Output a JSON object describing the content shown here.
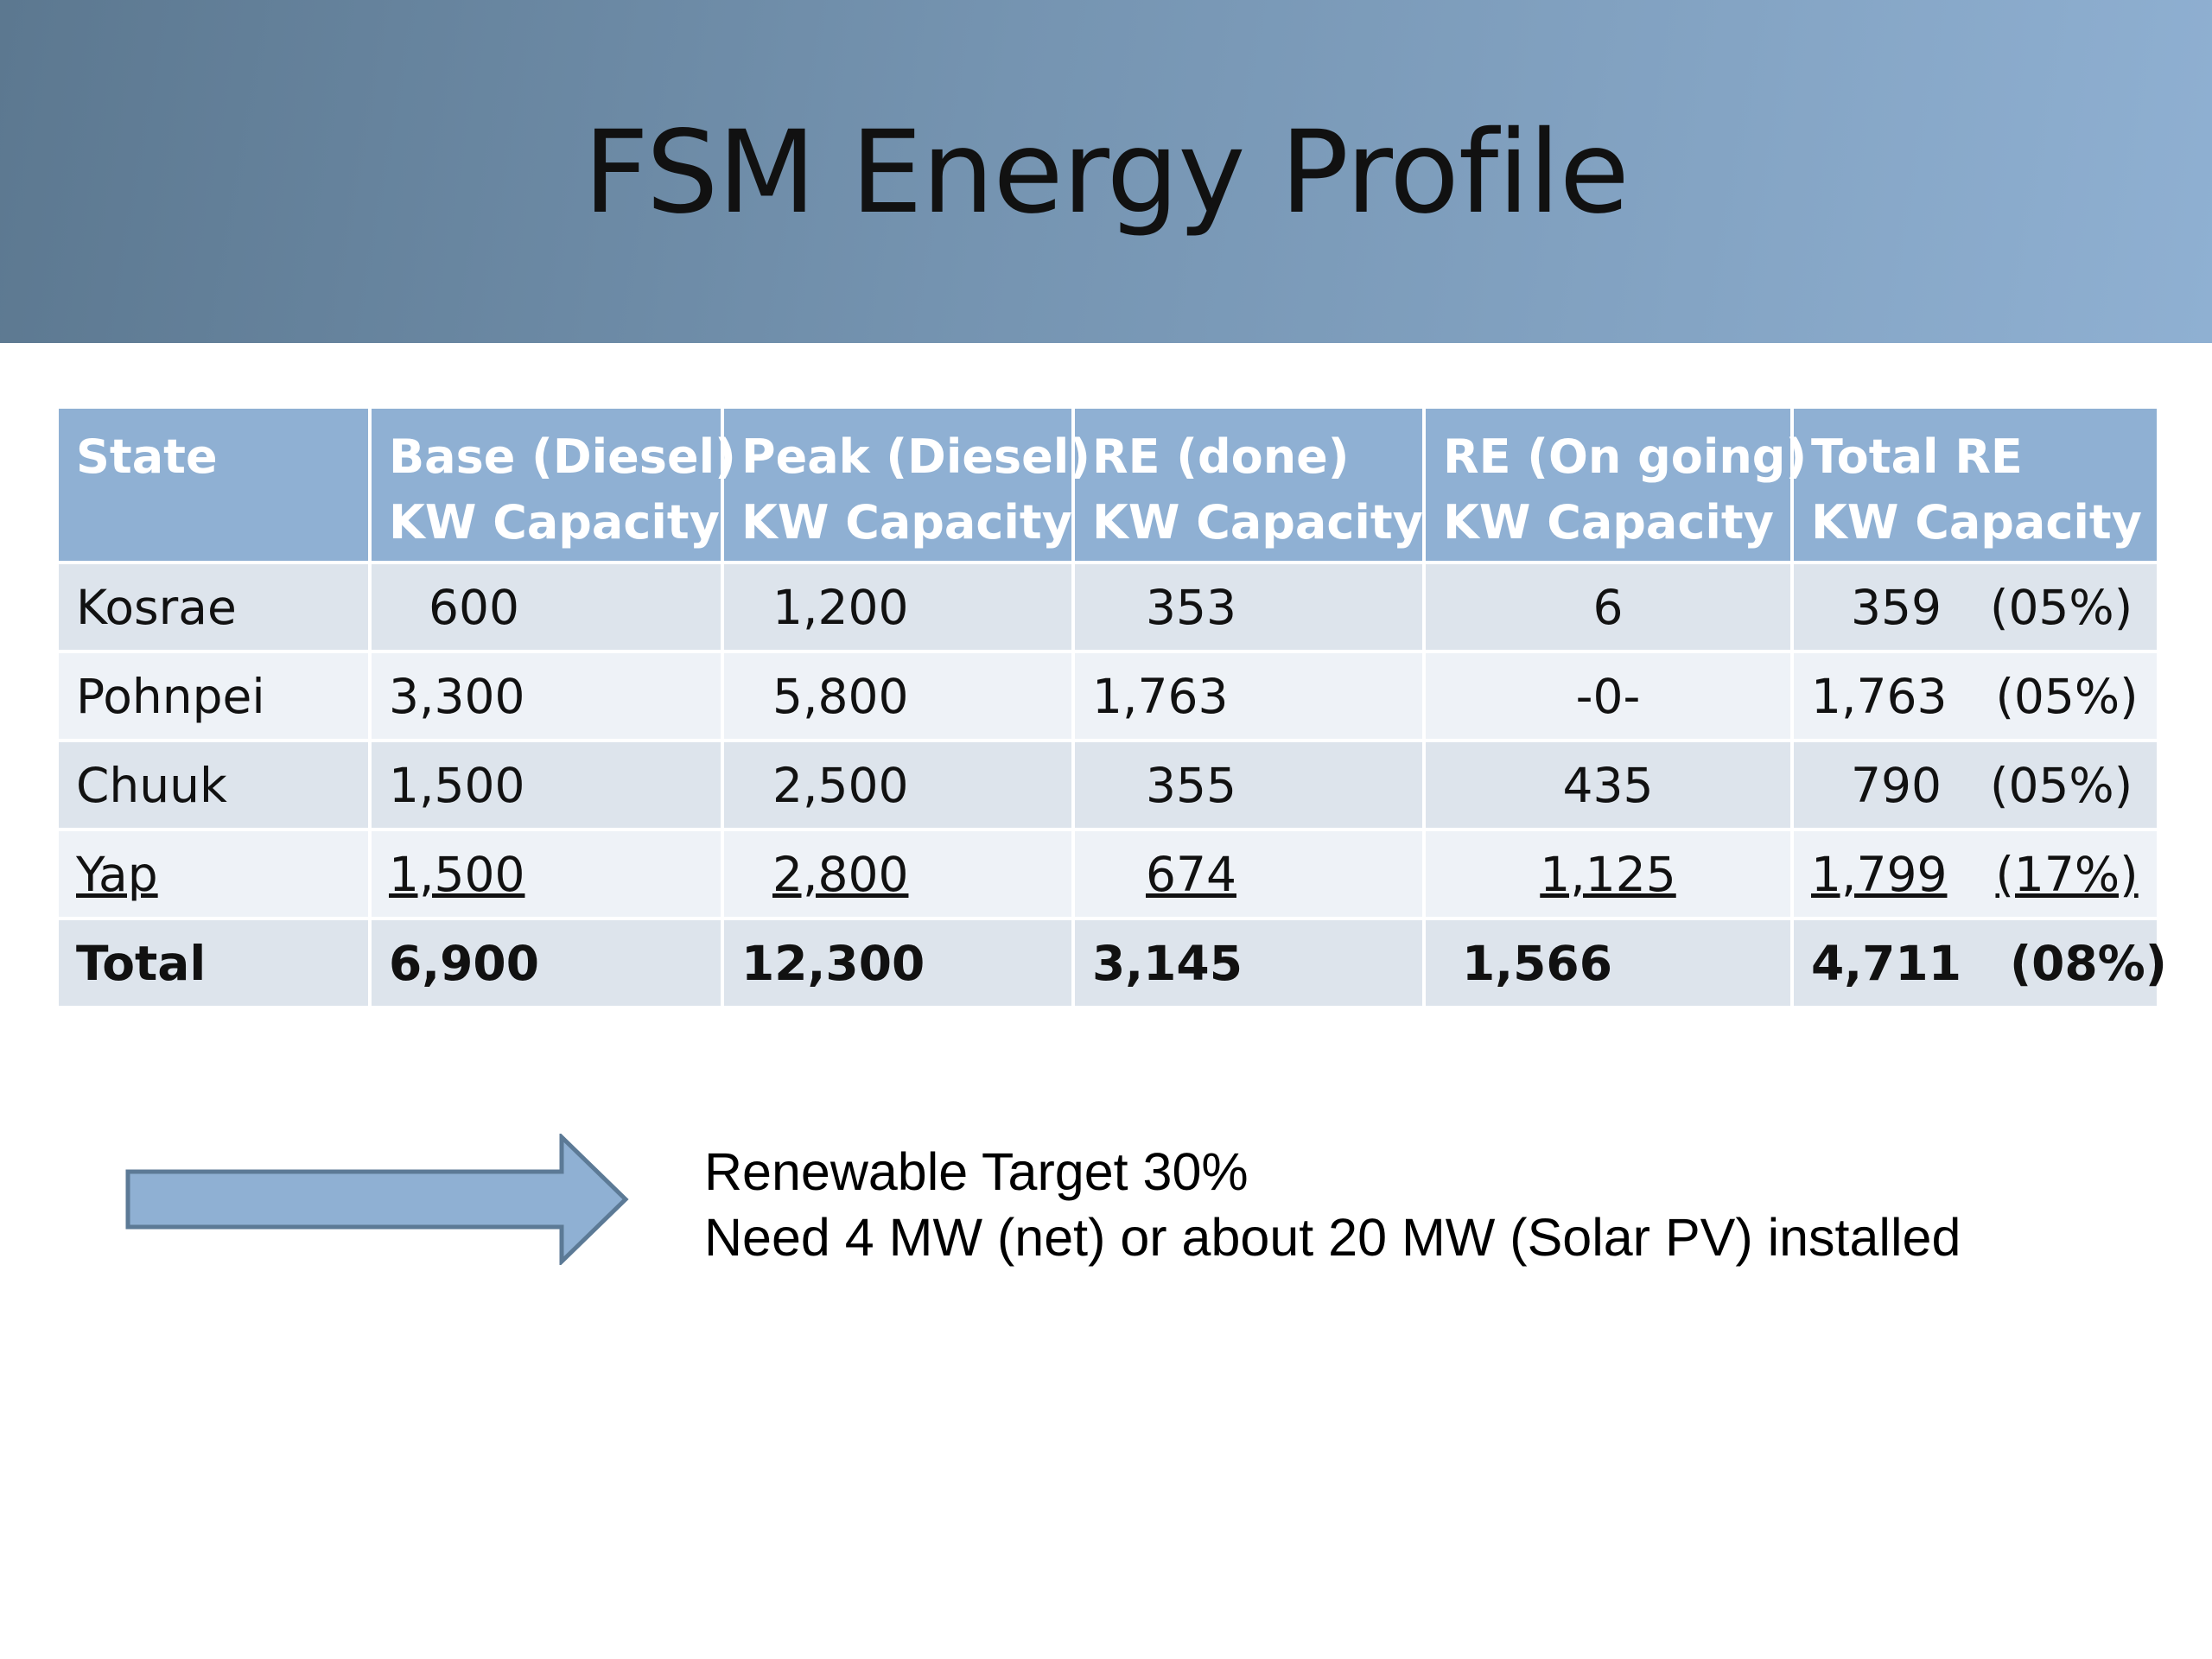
{
  "title": "FSM Energy Profile",
  "table": {
    "headers": [
      {
        "line1": "State",
        "line2": ""
      },
      {
        "line1": "Base (Diesel)",
        "line2": "KW Capacity"
      },
      {
        "line1": "Peak (Diesel)",
        "line2": "KW Capacity"
      },
      {
        "line1": "RE (done)",
        "line2": "KW Capacity"
      },
      {
        "line1": "RE (On going)",
        "line2": "KW Capacity"
      },
      {
        "line1": "Total RE",
        "line2": "KW Capacity"
      }
    ],
    "rows": [
      {
        "state": "Kosrae",
        "base": "600",
        "peak": "1,200",
        "re_done": "353",
        "re_ongoing": "6",
        "total_re": "359",
        "total_pct": "(05%)"
      },
      {
        "state": "Pohnpei",
        "base": "3,300",
        "peak": "5,800",
        "re_done": "1,763",
        "re_ongoing": "-0-",
        "total_re": "1,763",
        "total_pct": "(05%)"
      },
      {
        "state": "Chuuk",
        "base": "1,500",
        "peak": "2,500",
        "re_done": "355",
        "re_ongoing": "435",
        "total_re": "790",
        "total_pct": "(05%)"
      },
      {
        "state": "Yap",
        "base": "1,500",
        "peak": "2,800",
        "re_done": "674",
        "re_ongoing": "1,125",
        "total_re": "1,799",
        "total_pct": "(17%)"
      },
      {
        "state": "Total",
        "base": "6,900",
        "peak": "12,300",
        "re_done": "3,145",
        "re_ongoing": "1,566",
        "total_re": "4,711",
        "total_pct": "(08%)"
      }
    ]
  },
  "note": {
    "line1": "Renewable Target 30%",
    "line2": "Need 4 MW (net) or about 20 MW (Solar PV) installed"
  },
  "colors": {
    "header_fill": "#8fb0d3",
    "row_odd": "#dde4ec",
    "row_even": "#eef2f7",
    "arrow_fill": "#8fb0d3",
    "arrow_stroke": "#5c7a96"
  },
  "icons": {
    "arrow": "right-arrow-icon"
  }
}
